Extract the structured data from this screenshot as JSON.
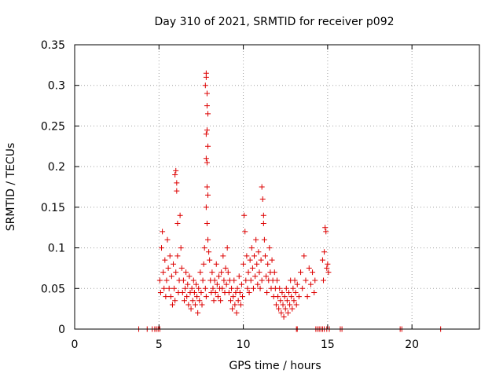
{
  "chart_data": {
    "type": "scatter",
    "title": "Day 310 of 2021, SRMTID for receiver p092",
    "xlabel": "GPS time / hours",
    "ylabel": "SRMTID / TECUs",
    "xlim": [
      0,
      24
    ],
    "ylim": [
      0,
      0.35
    ],
    "x_ticks": [
      0,
      5,
      10,
      15,
      20
    ],
    "x_tick_labels": [
      "0",
      "5",
      "10",
      "15",
      "20"
    ],
    "y_ticks": [
      0,
      0.05,
      0.1,
      0.15,
      0.2,
      0.25,
      0.3,
      0.35
    ],
    "y_tick_labels": [
      "0",
      "0.05",
      "0.1",
      "0.15",
      "0.2",
      "0.25",
      "0.3",
      "0.35"
    ],
    "grid": true,
    "marker": "plus",
    "marker_color": "#dd0000",
    "series": [
      {
        "name": "SRMTID",
        "points": [
          [
            3.8,
            0
          ],
          [
            4.3,
            0
          ],
          [
            4.6,
            0
          ],
          [
            4.75,
            0
          ],
          [
            4.85,
            0
          ],
          [
            4.95,
            0
          ],
          [
            5.05,
            0
          ],
          [
            13.15,
            0
          ],
          [
            13.2,
            0
          ],
          [
            14.3,
            0
          ],
          [
            14.4,
            0
          ],
          [
            14.5,
            0
          ],
          [
            14.6,
            0
          ],
          [
            14.7,
            0
          ],
          [
            14.8,
            0
          ],
          [
            14.95,
            0
          ],
          [
            15.1,
            0
          ],
          [
            15.75,
            0
          ],
          [
            15.85,
            0
          ],
          [
            19.3,
            0
          ],
          [
            19.4,
            0
          ],
          [
            21.7,
            0
          ],
          [
            5.05,
            0.06
          ],
          [
            5.1,
            0.045
          ],
          [
            5.15,
            0.1
          ],
          [
            5.2,
            0.12
          ],
          [
            5.25,
            0.07
          ],
          [
            5.3,
            0.05
          ],
          [
            5.35,
            0.085
          ],
          [
            5.4,
            0.04
          ],
          [
            5.45,
            0.06
          ],
          [
            5.5,
            0.11
          ],
          [
            5.55,
            0.075
          ],
          [
            5.6,
            0.05
          ],
          [
            5.65,
            0.09
          ],
          [
            5.7,
            0.04
          ],
          [
            5.75,
            0.065
          ],
          [
            5.8,
            0.03
          ],
          [
            5.85,
            0.08
          ],
          [
            5.9,
            0.05
          ],
          [
            5.95,
            0.035
          ],
          [
            6.0,
            0.07
          ],
          [
            5.95,
            0.19
          ],
          [
            6.0,
            0.195
          ],
          [
            6.05,
            0.17
          ],
          [
            6.05,
            0.18
          ],
          [
            6.1,
            0.13
          ],
          [
            6.1,
            0.09
          ],
          [
            6.15,
            0.045
          ],
          [
            6.2,
            0.06
          ],
          [
            6.25,
            0.14
          ],
          [
            6.3,
            0.1
          ],
          [
            6.35,
            0.075
          ],
          [
            6.4,
            0.045
          ],
          [
            6.45,
            0.06
          ],
          [
            6.5,
            0.035
          ],
          [
            6.55,
            0.05
          ],
          [
            6.6,
            0.07
          ],
          [
            6.65,
            0.04
          ],
          [
            6.7,
            0.055
          ],
          [
            6.75,
            0.03
          ],
          [
            6.8,
            0.065
          ],
          [
            6.85,
            0.045
          ],
          [
            6.9,
            0.025
          ],
          [
            6.95,
            0.05
          ],
          [
            7.0,
            0.035
          ],
          [
            7.05,
            0.06
          ],
          [
            7.1,
            0.045
          ],
          [
            7.15,
            0.03
          ],
          [
            7.2,
            0.055
          ],
          [
            7.25,
            0.04
          ],
          [
            7.3,
            0.02
          ],
          [
            7.35,
            0.05
          ],
          [
            7.4,
            0.035
          ],
          [
            7.45,
            0.07
          ],
          [
            7.5,
            0.045
          ],
          [
            7.55,
            0.03
          ],
          [
            7.6,
            0.06
          ],
          [
            7.65,
            0.08
          ],
          [
            7.7,
            0.1
          ],
          [
            7.75,
            0.05
          ],
          [
            7.8,
            0.04
          ],
          [
            7.75,
            0.3
          ],
          [
            7.8,
            0.315
          ],
          [
            7.8,
            0.31
          ],
          [
            7.85,
            0.29
          ],
          [
            7.85,
            0.275
          ],
          [
            7.9,
            0.265
          ],
          [
            7.8,
            0.24
          ],
          [
            7.85,
            0.245
          ],
          [
            7.9,
            0.225
          ],
          [
            7.8,
            0.21
          ],
          [
            7.85,
            0.205
          ],
          [
            7.85,
            0.175
          ],
          [
            7.9,
            0.165
          ],
          [
            7.8,
            0.15
          ],
          [
            7.85,
            0.13
          ],
          [
            7.9,
            0.11
          ],
          [
            7.95,
            0.095
          ],
          [
            8.0,
            0.085
          ],
          [
            8.05,
            0.06
          ],
          [
            8.1,
            0.045
          ],
          [
            8.15,
            0.07
          ],
          [
            8.2,
            0.05
          ],
          [
            8.25,
            0.035
          ],
          [
            8.3,
            0.06
          ],
          [
            8.35,
            0.045
          ],
          [
            8.4,
            0.08
          ],
          [
            8.45,
            0.055
          ],
          [
            8.5,
            0.04
          ],
          [
            8.55,
            0.065
          ],
          [
            8.6,
            0.05
          ],
          [
            8.65,
            0.035
          ],
          [
            8.7,
            0.07
          ],
          [
            8.75,
            0.05
          ],
          [
            8.8,
            0.09
          ],
          [
            8.85,
            0.06
          ],
          [
            8.9,
            0.045
          ],
          [
            8.95,
            0.075
          ],
          [
            9.0,
            0.055
          ],
          [
            9.05,
            0.1
          ],
          [
            9.1,
            0.07
          ],
          [
            9.15,
            0.045
          ],
          [
            9.2,
            0.06
          ],
          [
            9.25,
            0.035
          ],
          [
            9.3,
            0.05
          ],
          [
            9.35,
            0.025
          ],
          [
            9.4,
            0.04
          ],
          [
            9.45,
            0.06
          ],
          [
            9.5,
            0.03
          ],
          [
            9.55,
            0.045
          ],
          [
            9.6,
            0.02
          ],
          [
            9.65,
            0.05
          ],
          [
            9.7,
            0.035
          ],
          [
            9.75,
            0.065
          ],
          [
            9.8,
            0.045
          ],
          [
            9.85,
            0.03
          ],
          [
            9.9,
            0.055
          ],
          [
            9.95,
            0.04
          ],
          [
            10.0,
            0.08
          ],
          [
            10.05,
            0.14
          ],
          [
            10.1,
            0.12
          ],
          [
            10.15,
            0.06
          ],
          [
            10.2,
            0.09
          ],
          [
            10.25,
            0.05
          ],
          [
            10.3,
            0.07
          ],
          [
            10.35,
            0.045
          ],
          [
            10.4,
            0.085
          ],
          [
            10.45,
            0.06
          ],
          [
            10.5,
            0.1
          ],
          [
            10.55,
            0.075
          ],
          [
            10.6,
            0.05
          ],
          [
            10.65,
            0.09
          ],
          [
            10.7,
            0.065
          ],
          [
            10.75,
            0.11
          ],
          [
            10.8,
            0.08
          ],
          [
            10.85,
            0.055
          ],
          [
            10.9,
            0.095
          ],
          [
            10.95,
            0.07
          ],
          [
            11.0,
            0.05
          ],
          [
            11.05,
            0.085
          ],
          [
            11.1,
            0.06
          ],
          [
            11.1,
            0.175
          ],
          [
            11.15,
            0.16
          ],
          [
            11.2,
            0.14
          ],
          [
            11.2,
            0.13
          ],
          [
            11.25,
            0.11
          ],
          [
            11.3,
            0.09
          ],
          [
            11.35,
            0.065
          ],
          [
            11.4,
            0.045
          ],
          [
            11.45,
            0.08
          ],
          [
            11.5,
            0.06
          ],
          [
            11.55,
            0.1
          ],
          [
            11.6,
            0.07
          ],
          [
            11.65,
            0.05
          ],
          [
            11.7,
            0.085
          ],
          [
            11.75,
            0.06
          ],
          [
            11.8,
            0.04
          ],
          [
            11.85,
            0.07
          ],
          [
            11.9,
            0.05
          ],
          [
            11.95,
            0.03
          ],
          [
            12.0,
            0.06
          ],
          [
            12.05,
            0.04
          ],
          [
            12.1,
            0.025
          ],
          [
            12.15,
            0.05
          ],
          [
            12.2,
            0.035
          ],
          [
            12.25,
            0.02
          ],
          [
            12.3,
            0.045
          ],
          [
            12.35,
            0.03
          ],
          [
            12.4,
            0.015
          ],
          [
            12.45,
            0.04
          ],
          [
            12.5,
            0.025
          ],
          [
            12.55,
            0.05
          ],
          [
            12.6,
            0.035
          ],
          [
            12.65,
            0.02
          ],
          [
            12.7,
            0.045
          ],
          [
            12.75,
            0.03
          ],
          [
            12.8,
            0.06
          ],
          [
            12.85,
            0.04
          ],
          [
            12.9,
            0.025
          ],
          [
            12.95,
            0.05
          ],
          [
            13.0,
            0.035
          ],
          [
            13.05,
            0.06
          ],
          [
            13.1,
            0.045
          ],
          [
            13.15,
            0.03
          ],
          [
            13.2,
            0.055
          ],
          [
            13.3,
            0.04
          ],
          [
            13.4,
            0.07
          ],
          [
            13.5,
            0.05
          ],
          [
            13.6,
            0.09
          ],
          [
            13.7,
            0.06
          ],
          [
            13.8,
            0.04
          ],
          [
            13.9,
            0.075
          ],
          [
            14.0,
            0.055
          ],
          [
            14.1,
            0.07
          ],
          [
            14.2,
            0.045
          ],
          [
            14.25,
            0.06
          ],
          [
            14.7,
            0.085
          ],
          [
            14.75,
            0.06
          ],
          [
            14.8,
            0.095
          ],
          [
            14.85,
            0.125
          ],
          [
            14.9,
            0.12
          ],
          [
            14.95,
            0.075
          ],
          [
            15.0,
            0.08
          ],
          [
            15.05,
            0.07
          ]
        ]
      }
    ]
  }
}
